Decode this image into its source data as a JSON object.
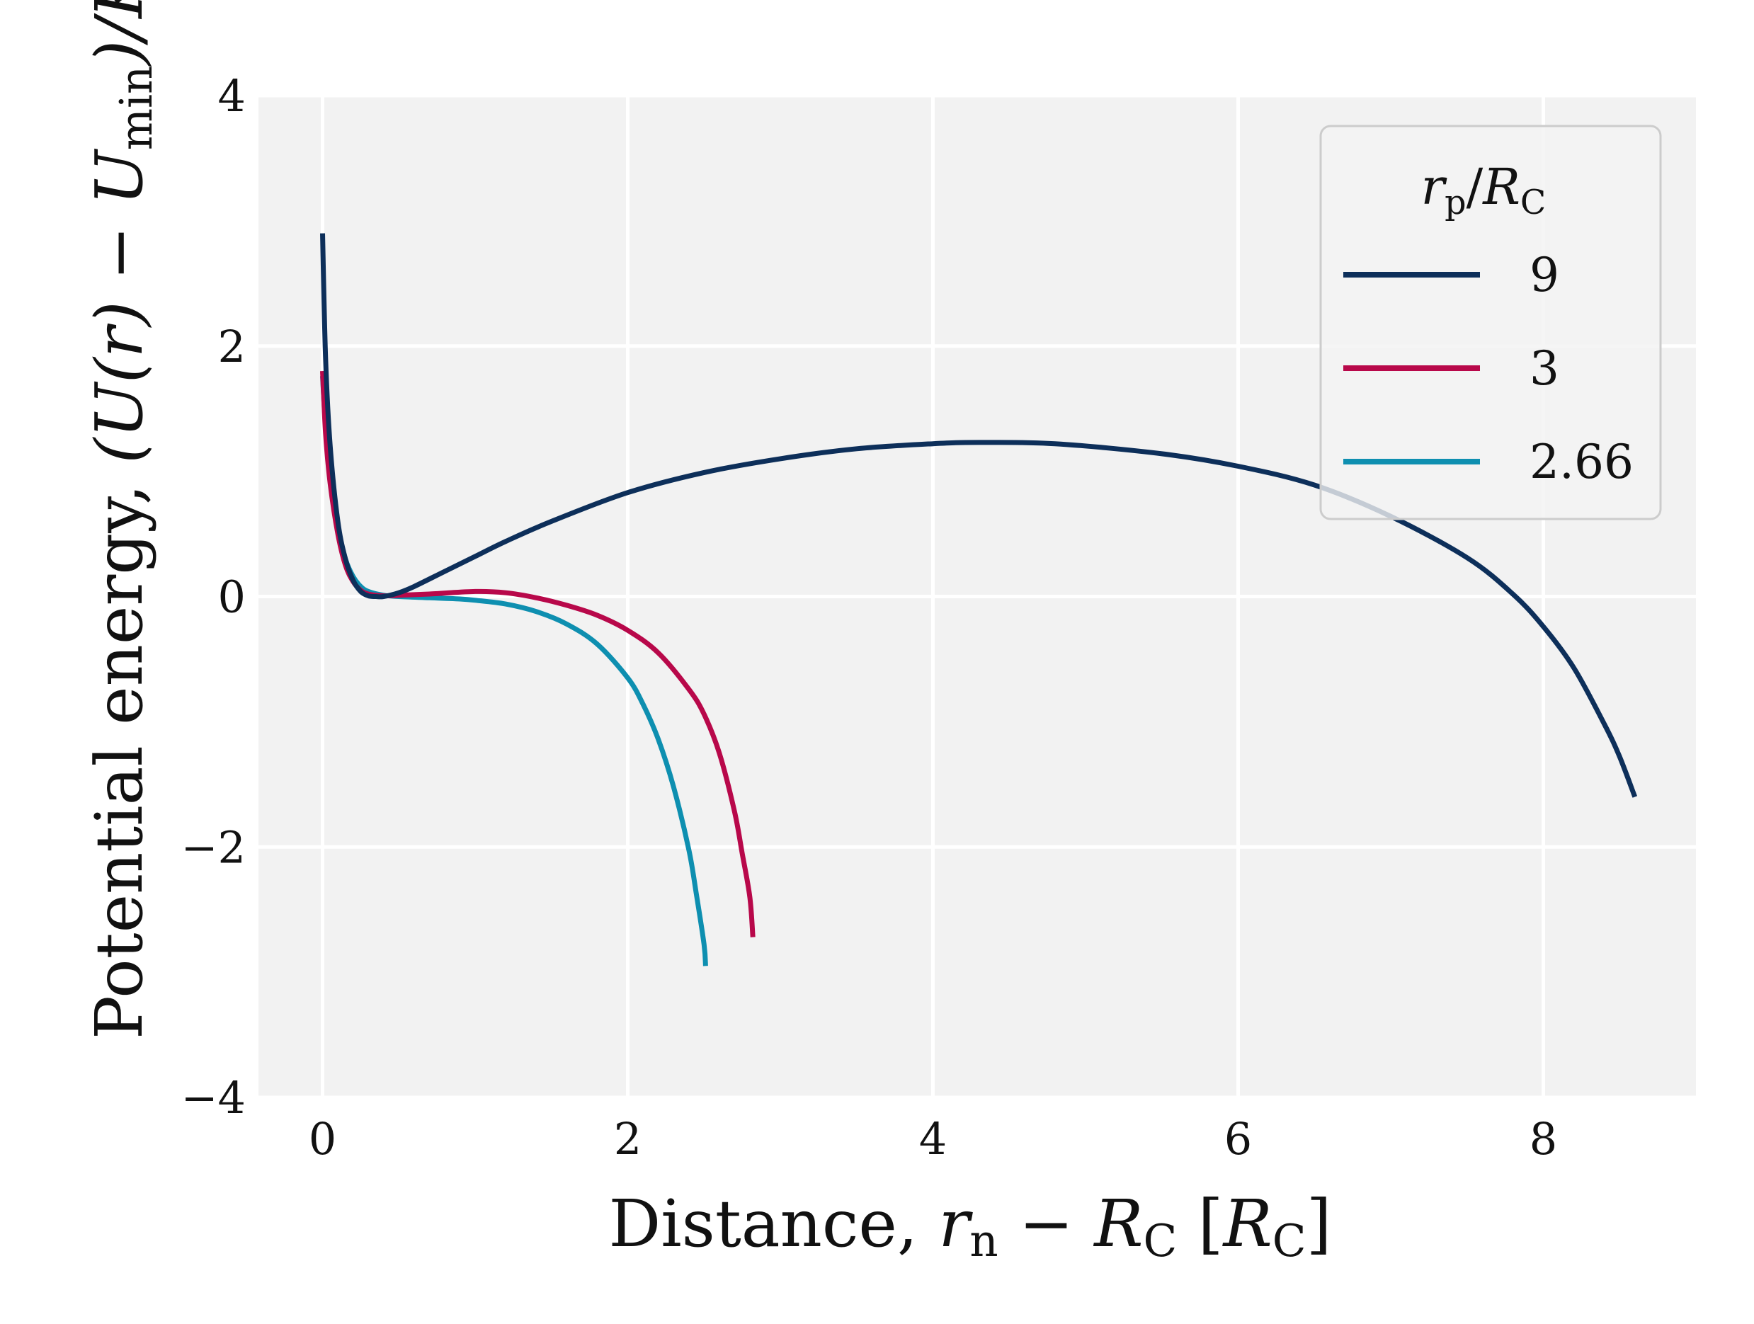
{
  "chart_data": {
    "type": "line",
    "xlabel": {
      "main": "Distance, ",
      "var": "r",
      "var_sub": "n",
      "minus": " − ",
      "var2": "R",
      "var2_sub": "C",
      "unit_open": " [",
      "unit": "R",
      "unit_sub": "C",
      "unit_close": "]"
    },
    "ylabel": {
      "main": "Potential energy, ",
      "expr": "(U(r) − U",
      "expr_sub": "min",
      "expr_close": ")/K"
    },
    "xlim": [
      -0.42,
      9.0
    ],
    "ylim": [
      -4.0,
      4.0
    ],
    "x_ticks": [
      0,
      2,
      4,
      6,
      8
    ],
    "x_tick_labels": [
      "0",
      "2",
      "4",
      "6",
      "8"
    ],
    "y_ticks": [
      -4,
      -2,
      0,
      2,
      4
    ],
    "y_tick_labels": [
      "−4",
      "−2",
      "0",
      "2",
      "4"
    ],
    "grid": true,
    "legend": {
      "placement": "top-right",
      "title_var": "r",
      "title_var_sub": "p",
      "title_slash": "/",
      "title_var2": "R",
      "title_var2_sub": "C"
    },
    "series": [
      {
        "name": "9",
        "color": "#0d2f5a",
        "points": [
          [
            0.0,
            2.9
          ],
          [
            0.02,
            1.9
          ],
          [
            0.05,
            1.2
          ],
          [
            0.1,
            0.6
          ],
          [
            0.15,
            0.3
          ],
          [
            0.2,
            0.13
          ],
          [
            0.25,
            0.04
          ],
          [
            0.3,
            0.005
          ],
          [
            0.35,
            0.0
          ],
          [
            0.4,
            0.0
          ],
          [
            0.5,
            0.03
          ],
          [
            0.6,
            0.08
          ],
          [
            0.8,
            0.2
          ],
          [
            1.0,
            0.32
          ],
          [
            1.2,
            0.44
          ],
          [
            1.5,
            0.6
          ],
          [
            2.0,
            0.83
          ],
          [
            2.5,
            0.99
          ],
          [
            3.0,
            1.1
          ],
          [
            3.5,
            1.18
          ],
          [
            4.0,
            1.22
          ],
          [
            4.3,
            1.23
          ],
          [
            4.8,
            1.22
          ],
          [
            5.5,
            1.14
          ],
          [
            6.0,
            1.04
          ],
          [
            6.5,
            0.89
          ],
          [
            7.0,
            0.64
          ],
          [
            7.5,
            0.31
          ],
          [
            7.8,
            0.02
          ],
          [
            8.0,
            -0.24
          ],
          [
            8.2,
            -0.57
          ],
          [
            8.4,
            -1.02
          ],
          [
            8.5,
            -1.28
          ],
          [
            8.6,
            -1.6
          ]
        ]
      },
      {
        "name": "3",
        "color": "#b8084a",
        "points": [
          [
            0.0,
            1.8
          ],
          [
            0.02,
            1.3
          ],
          [
            0.05,
            0.9
          ],
          [
            0.1,
            0.5
          ],
          [
            0.15,
            0.25
          ],
          [
            0.2,
            0.12
          ],
          [
            0.25,
            0.05
          ],
          [
            0.3,
            0.02
          ],
          [
            0.4,
            0.005
          ],
          [
            0.5,
            0.01
          ],
          [
            0.7,
            0.02
          ],
          [
            1.0,
            0.04
          ],
          [
            1.2,
            0.03
          ],
          [
            1.4,
            -0.01
          ],
          [
            1.6,
            -0.07
          ],
          [
            1.8,
            -0.15
          ],
          [
            2.0,
            -0.27
          ],
          [
            2.2,
            -0.45
          ],
          [
            2.4,
            -0.74
          ],
          [
            2.5,
            -0.94
          ],
          [
            2.6,
            -1.25
          ],
          [
            2.7,
            -1.72
          ],
          [
            2.75,
            -2.05
          ],
          [
            2.8,
            -2.4
          ],
          [
            2.82,
            -2.72
          ]
        ]
      },
      {
        "name": "2.66",
        "color": "#0e8fb0",
        "points": [
          [
            0.0,
            1.76
          ],
          [
            0.02,
            1.35
          ],
          [
            0.05,
            0.95
          ],
          [
            0.1,
            0.55
          ],
          [
            0.15,
            0.3
          ],
          [
            0.2,
            0.16
          ],
          [
            0.25,
            0.08
          ],
          [
            0.3,
            0.04
          ],
          [
            0.4,
            0.01
          ],
          [
            0.5,
            0.0
          ],
          [
            0.7,
            -0.01
          ],
          [
            0.9,
            -0.02
          ],
          [
            1.0,
            -0.03
          ],
          [
            1.2,
            -0.06
          ],
          [
            1.4,
            -0.12
          ],
          [
            1.6,
            -0.22
          ],
          [
            1.8,
            -0.38
          ],
          [
            2.0,
            -0.65
          ],
          [
            2.1,
            -0.86
          ],
          [
            2.2,
            -1.14
          ],
          [
            2.3,
            -1.52
          ],
          [
            2.4,
            -2.02
          ],
          [
            2.45,
            -2.38
          ],
          [
            2.5,
            -2.78
          ],
          [
            2.51,
            -2.95
          ]
        ]
      }
    ]
  }
}
